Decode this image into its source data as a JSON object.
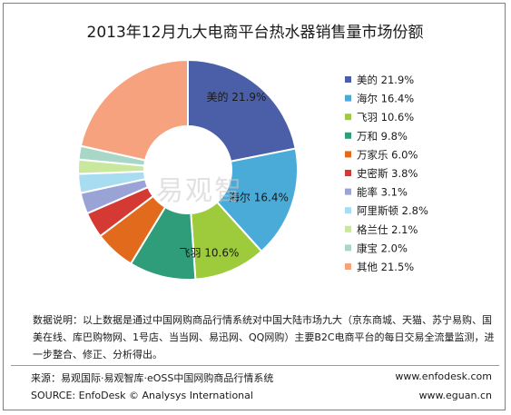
{
  "chart_data": {
    "type": "pie",
    "title": "2013年12月九大电商平台热水器销售量市场份额",
    "categories": [
      "美的",
      "海尔",
      "飞羽",
      "万和",
      "万家乐",
      "史密斯",
      "能率",
      "阿里斯顿",
      "格兰仕",
      "康宝",
      "其他"
    ],
    "values": [
      21.9,
      16.4,
      10.6,
      9.8,
      6.0,
      3.8,
      3.1,
      2.8,
      2.1,
      2.0,
      21.5
    ],
    "value_labels": [
      "21.9%",
      "16.4%",
      "10.6%",
      "9.8%",
      "6.0%",
      "3.8%",
      "3.1%",
      "2.8%",
      "2.1%",
      "2.0%",
      "21.5%"
    ],
    "colors": [
      "#4a5fa8",
      "#4aabd9",
      "#9dcb3c",
      "#2f9c7a",
      "#e26a1d",
      "#d43a33",
      "#9aa3d6",
      "#a8dcf0",
      "#c9e89e",
      "#a8d7c7",
      "#f7a27f"
    ],
    "inner_labels": [
      {
        "name": "美的",
        "value": "21.9%"
      },
      {
        "name": "海尔",
        "value": "16.4%"
      },
      {
        "name": "飞羽",
        "value": "10.6%"
      }
    ],
    "chart_style": "donut",
    "legend_position": "right"
  },
  "watermark": "易观智",
  "note": "数据说明：以上数据是通过中国网购商品行情系统对中国大陆市场九大（京东商城、天猫、苏宁易购、国美在线、库巴购物网、1号店、当当网、易迅网、QQ网购）主要B2C电商平台的每日交易全流量监测，进一步整合、修正、分析得出。",
  "footer": {
    "source_cn": "来源：易观国际·易观智库·eOSS中国网购商品行情系统",
    "source_en": "SOURCE: EnfoDesk © Analysys International",
    "site1": "www.enfodesk.com",
    "site2": "www.eguan.cn"
  }
}
